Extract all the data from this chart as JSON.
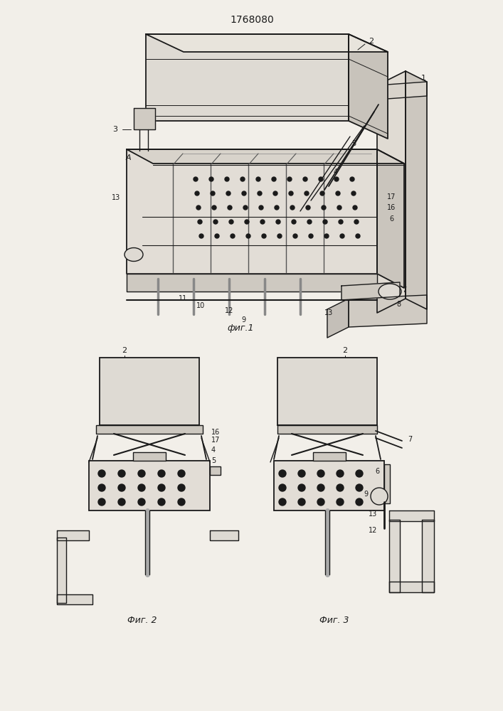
{
  "title": "1768080",
  "fig1_label": "фиг.1",
  "fig2_label": "Фиг. 2",
  "fig3_label": "Фиг. 3",
  "bg_color": "#f2efe9",
  "line_color": "#1a1a1a",
  "lw": 1.0
}
